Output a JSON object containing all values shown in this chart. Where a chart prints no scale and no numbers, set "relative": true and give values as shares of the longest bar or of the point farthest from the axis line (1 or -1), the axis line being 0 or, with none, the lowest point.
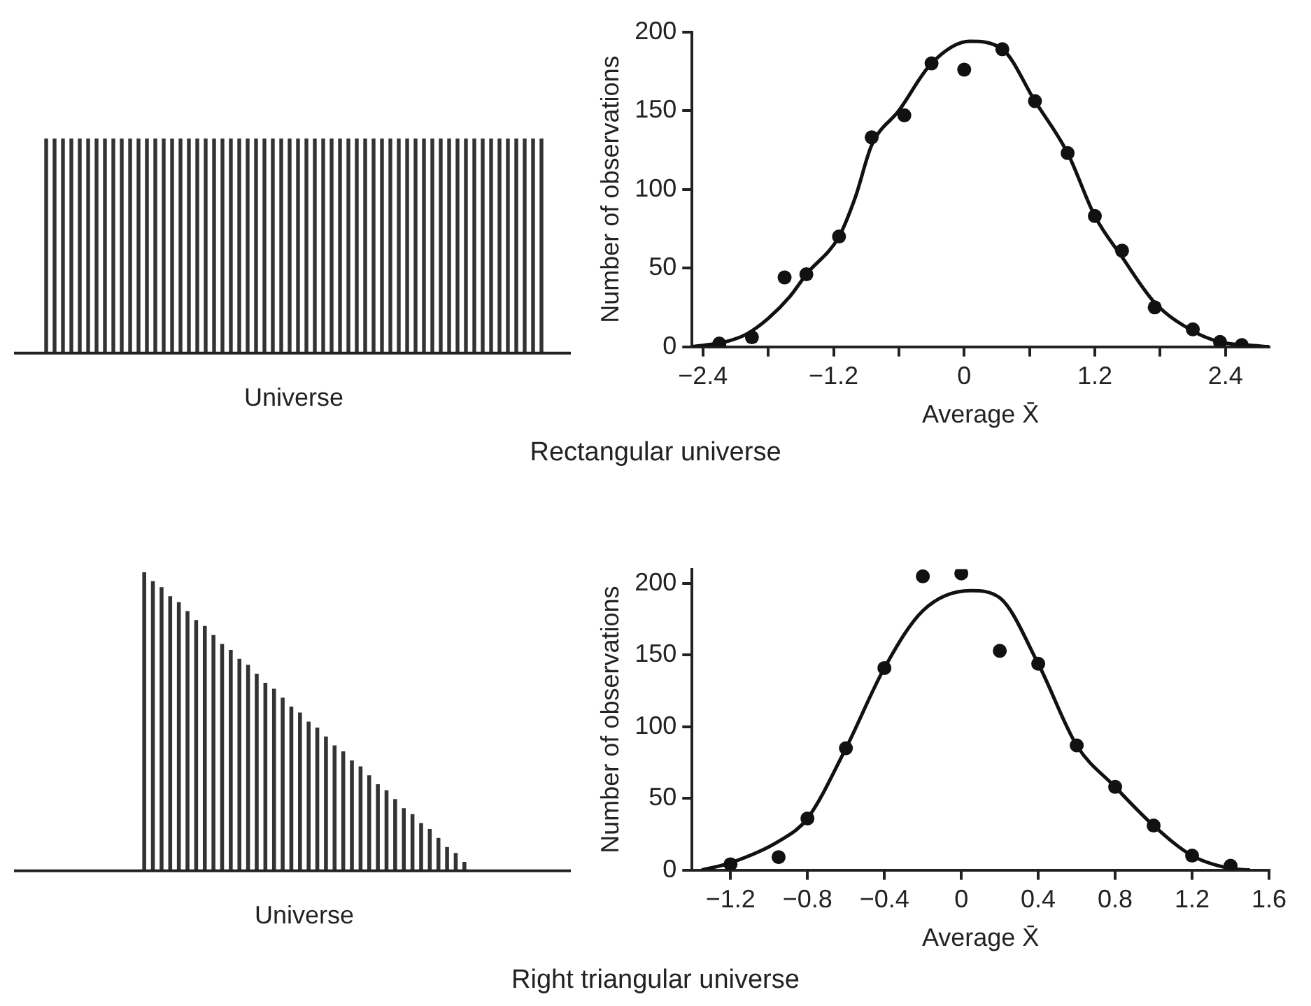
{
  "chart_data": [
    {
      "type": "bar",
      "relative": true,
      "xlabel": "Universe",
      "annotations": [
        "Rectangular universe"
      ],
      "categories": [
        null,
        null,
        null,
        null,
        null,
        null,
        null,
        null,
        null,
        null,
        null,
        null,
        null,
        null,
        null,
        null,
        null,
        null,
        null,
        null,
        null,
        null,
        null,
        null,
        null,
        null,
        null,
        null,
        null,
        null,
        null,
        null,
        null,
        null,
        null,
        null,
        null,
        null,
        null,
        null,
        null,
        null,
        null,
        null,
        null,
        null,
        null,
        null,
        null,
        null,
        null,
        null,
        null,
        null,
        null,
        null,
        null,
        null,
        null,
        null
      ],
      "series": [
        {
          "color": "#333333",
          "values": [
            1,
            1,
            1,
            1,
            1,
            1,
            1,
            1,
            1,
            1,
            1,
            1,
            1,
            1,
            1,
            1,
            1,
            1,
            1,
            1,
            1,
            1,
            1,
            1,
            1,
            1,
            1,
            1,
            1,
            1,
            1,
            1,
            1,
            1,
            1,
            1,
            1,
            1,
            1,
            1,
            1,
            1,
            1,
            1,
            1,
            1,
            1,
            1,
            1,
            1,
            1,
            1,
            1,
            1,
            1,
            1,
            1,
            1,
            1,
            1
          ]
        }
      ]
    },
    {
      "type": "scatter",
      "xlabel": "Average X̄",
      "ylabel": "Number of observations",
      "xlim": [
        -2.5,
        2.8
      ],
      "ylim": [
        0,
        200
      ],
      "xticks": [
        {
          "value": -2.4,
          "label": "−2.4"
        },
        {
          "value": -1.8,
          "label": null
        },
        {
          "value": -1.2,
          "label": "−1.2"
        },
        {
          "value": -0.6,
          "label": null
        },
        0,
        {
          "value": 0.6,
          "label": null
        },
        1.2,
        {
          "value": 1.8,
          "label": null
        },
        2.4
      ],
      "yticks": [
        0,
        50,
        100,
        150,
        200
      ],
      "grid": false,
      "series": [
        {
          "type": "scatter",
          "marker": "circle",
          "color": "#111111",
          "x": [
            -2.25,
            -1.95,
            -1.65,
            -1.45,
            -1.15,
            -0.85,
            -0.55,
            -0.3,
            0.0,
            0.35,
            0.65,
            0.95,
            1.2,
            1.45,
            1.75,
            2.1,
            2.35,
            2.55
          ],
          "values": [
            2,
            6,
            44,
            46,
            70,
            133,
            147,
            180,
            176,
            189,
            156,
            123,
            83,
            61,
            25,
            11,
            3,
            1
          ]
        },
        {
          "type": "line",
          "marker": "none",
          "color": "#111111",
          "x": [
            -2.5,
            -2.2,
            -2.0,
            -1.8,
            -1.6,
            -1.45,
            -1.15,
            -1.0,
            -0.85,
            -0.6,
            -0.3,
            0.05,
            0.35,
            0.65,
            0.95,
            1.2,
            1.45,
            1.75,
            2.1,
            2.35,
            2.6,
            2.8
          ],
          "values": [
            0,
            3,
            8,
            18,
            32,
            46,
            70,
            95,
            128,
            150,
            180,
            194,
            189,
            156,
            123,
            83,
            57,
            28,
            10,
            3,
            1,
            0
          ]
        }
      ]
    },
    {
      "type": "bar",
      "relative": true,
      "xlabel": "Universe",
      "annotations": [
        "Right triangular universe"
      ],
      "categories": [
        null,
        null,
        null,
        null,
        null,
        null,
        null,
        null,
        null,
        null,
        null,
        null,
        null,
        null,
        null,
        null,
        null,
        null,
        null,
        null,
        null,
        null,
        null,
        null,
        null,
        null,
        null,
        null,
        null,
        null,
        null,
        null,
        null,
        null,
        null,
        null,
        null,
        null
      ],
      "series": [
        {
          "color": "#333333",
          "values": [
            1,
            0.97,
            0.95,
            0.92,
            0.9,
            0.87,
            0.84,
            0.82,
            0.79,
            0.76,
            0.74,
            0.71,
            0.69,
            0.66,
            0.63,
            0.61,
            0.58,
            0.55,
            0.53,
            0.5,
            0.48,
            0.45,
            0.42,
            0.4,
            0.37,
            0.35,
            0.32,
            0.29,
            0.27,
            0.24,
            0.21,
            0.19,
            0.16,
            0.14,
            0.11,
            0.08,
            0.06,
            0.03
          ]
        }
      ]
    },
    {
      "type": "scatter",
      "xlabel": "Average X̄",
      "ylabel": "Number of observations",
      "xlim": [
        -1.4,
        1.6
      ],
      "ylim": [
        0,
        210
      ],
      "xticks": [
        {
          "value": -1.2,
          "label": "−1.2"
        },
        {
          "value": -0.8,
          "label": "−0.8"
        },
        {
          "value": -0.4,
          "label": "−0.4"
        },
        0,
        0.4,
        0.8,
        1.2,
        1.6
      ],
      "yticks": [
        0,
        50,
        100,
        150,
        200
      ],
      "grid": false,
      "series": [
        {
          "type": "scatter",
          "marker": "circle",
          "color": "#111111",
          "x": [
            -1.2,
            -0.95,
            -0.8,
            -0.6,
            -0.4,
            -0.2,
            0.0,
            0.2,
            0.4,
            0.6,
            0.8,
            1.0,
            1.2,
            1.4
          ],
          "values": [
            4,
            9,
            36,
            85,
            141,
            205,
            207,
            153,
            144,
            87,
            58,
            31,
            10,
            3
          ]
        },
        {
          "type": "line",
          "marker": "none",
          "color": "#111111",
          "x": [
            -1.35,
            -1.2,
            -0.95,
            -0.8,
            -0.6,
            -0.4,
            -0.2,
            0.05,
            0.2,
            0.4,
            0.6,
            0.8,
            1.0,
            1.2,
            1.4,
            1.5
          ],
          "values": [
            0,
            5,
            20,
            36,
            85,
            141,
            181,
            195,
            190,
            144,
            87,
            58,
            31,
            10,
            1,
            0
          ]
        }
      ]
    }
  ]
}
